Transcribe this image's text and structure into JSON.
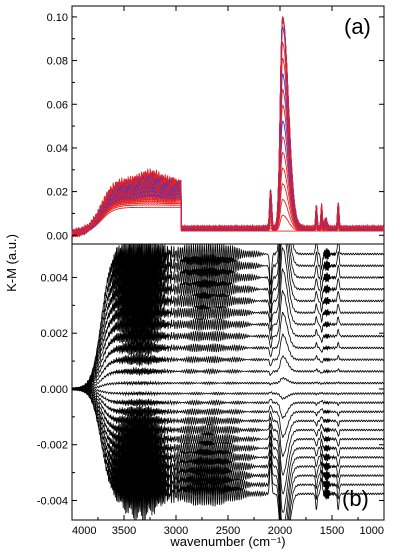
{
  "chart_data": {
    "type": "line",
    "xlabel": "wavenumber (cm⁻¹)",
    "ylabel": "K-M (a.u.)",
    "xlim": [
      4000,
      1000
    ],
    "x_reversed": true,
    "x_ticks": [
      "4000",
      "3500",
      "3000",
      "2500",
      "2000",
      "1500",
      "1000"
    ],
    "x_tick_values": [
      4000,
      3500,
      3000,
      2500,
      2000,
      1500,
      1000
    ],
    "panels": [
      {
        "label": "(a)",
        "ylim": [
          -0.004,
          0.105
        ],
        "y_ticks": [
          "0.00",
          "0.02",
          "0.04",
          "0.06",
          "0.08",
          "0.10"
        ],
        "y_tick_values": [
          0.0,
          0.02,
          0.04,
          0.06,
          0.08,
          0.1
        ],
        "series_colors": [
          "#e8211f",
          "#1f3df0"
        ],
        "n_spectra": 24,
        "peaks": [
          {
            "x": 1975,
            "y": 0.097
          },
          {
            "x": 2090,
            "y": 0.018
          },
          {
            "x": 1650,
            "y": 0.01
          },
          {
            "x": 1600,
            "y": 0.01
          },
          {
            "x": 1440,
            "y": 0.011
          }
        ],
        "baseline_at_4000": [
          0.0,
          0.034
        ]
      },
      {
        "label": "(b)",
        "ylim": [
          -0.0047,
          0.0052
        ],
        "y_ticks": [
          "-0.004",
          "-0.002",
          "0.000",
          "0.002",
          "0.004"
        ],
        "y_tick_values": [
          -0.004,
          -0.002,
          0.0,
          0.002,
          0.004
        ],
        "series_colors": [
          "#000000"
        ],
        "n_spectra": 24,
        "range_at_4000": [
          -0.0037,
          0.005
        ],
        "peak_1975_range": [
          -0.004,
          0.0042
        ]
      }
    ]
  }
}
